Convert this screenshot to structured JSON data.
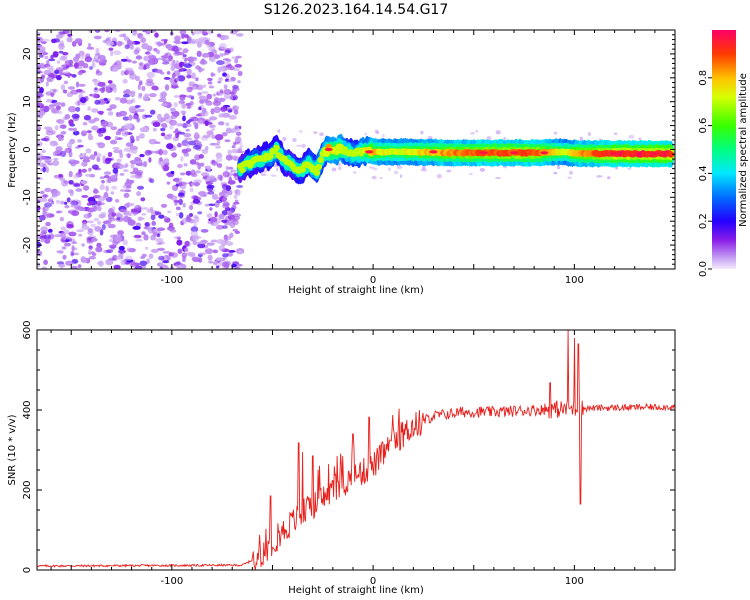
{
  "title": "S126.2023.164.14.54.G17",
  "chart_data": [
    {
      "type": "heatmap",
      "xlabel": "Height of straight line (km)",
      "ylabel": "Frequency (Hz)",
      "xlim": [
        -167,
        150
      ],
      "ylim": [
        -25,
        25
      ],
      "x_ticks": [
        -100,
        0,
        100
      ],
      "y_ticks": [
        -20,
        -10,
        0,
        10,
        20
      ],
      "colorbar": {
        "label": "Normalized spectral amplitude",
        "range": [
          0,
          1
        ],
        "ticks": [
          0.0,
          0.2,
          0.4,
          0.6,
          0.8
        ]
      },
      "noise_region": {
        "x": [
          -167,
          -66
        ],
        "y": [
          -25,
          25
        ]
      },
      "ridge": [
        {
          "x": -66,
          "y": -4,
          "amp": 0.4
        },
        {
          "x": -60,
          "y": -2.5,
          "amp": 0.45
        },
        {
          "x": -52,
          "y": -1.5,
          "amp": 0.45
        },
        {
          "x": -48,
          "y": 0,
          "amp": 0.5
        },
        {
          "x": -45,
          "y": -2,
          "amp": 0.45
        },
        {
          "x": -40,
          "y": -3.5,
          "amp": 0.4
        },
        {
          "x": -36,
          "y": -4.5,
          "amp": 0.45
        },
        {
          "x": -32,
          "y": -3,
          "amp": 0.5
        },
        {
          "x": -28,
          "y": -4.5,
          "amp": 0.6
        },
        {
          "x": -25,
          "y": -1,
          "amp": 0.5
        },
        {
          "x": -22,
          "y": 0,
          "amp": 0.8
        },
        {
          "x": -15,
          "y": 0,
          "amp": 0.7
        },
        {
          "x": -10,
          "y": -1,
          "amp": 0.5
        },
        {
          "x": -5,
          "y": -0.5,
          "amp": 0.7
        },
        {
          "x": 0,
          "y": -0.5,
          "amp": 0.8
        },
        {
          "x": 10,
          "y": -0.5,
          "amp": 0.7
        },
        {
          "x": 20,
          "y": -0.5,
          "amp": 0.75
        },
        {
          "x": 40,
          "y": -0.7,
          "amp": 0.85
        },
        {
          "x": 60,
          "y": -0.7,
          "amp": 0.9
        },
        {
          "x": 80,
          "y": -0.7,
          "amp": 0.9
        },
        {
          "x": 95,
          "y": -0.5,
          "amp": 0.7
        },
        {
          "x": 100,
          "y": -0.8,
          "amp": 0.8
        },
        {
          "x": 120,
          "y": -0.9,
          "amp": 0.95
        },
        {
          "x": 148,
          "y": -0.9,
          "amp": 0.95
        }
      ]
    },
    {
      "type": "line",
      "xlabel": "Height of straight line (km)",
      "ylabel": "SNR (10 * v/v)",
      "xlim": [
        -167,
        150
      ],
      "ylim": [
        0,
        600
      ],
      "x_ticks": [
        -100,
        0,
        100
      ],
      "y_ticks": [
        0,
        200,
        400,
        600
      ],
      "color": "#e8201c",
      "envelope": [
        {
          "x": -167,
          "y": 10
        },
        {
          "x": -65,
          "y": 12
        },
        {
          "x": -58,
          "y": 30
        },
        {
          "x": -50,
          "y": 70
        },
        {
          "x": -40,
          "y": 120
        },
        {
          "x": -30,
          "y": 160
        },
        {
          "x": -20,
          "y": 200
        },
        {
          "x": -10,
          "y": 230
        },
        {
          "x": 0,
          "y": 260
        },
        {
          "x": 10,
          "y": 320
        },
        {
          "x": 20,
          "y": 360
        },
        {
          "x": 30,
          "y": 385
        },
        {
          "x": 45,
          "y": 395
        },
        {
          "x": 60,
          "y": 395
        },
        {
          "x": 80,
          "y": 400
        },
        {
          "x": 110,
          "y": 405
        },
        {
          "x": 150,
          "y": 408
        }
      ],
      "spikes": [
        {
          "x": -51,
          "y": 185
        },
        {
          "x": -37,
          "y": 318
        },
        {
          "x": -35,
          "y": 295
        },
        {
          "x": -30,
          "y": 285
        },
        {
          "x": -22,
          "y": 265
        },
        {
          "x": -15,
          "y": 285
        },
        {
          "x": -10,
          "y": 340
        },
        {
          "x": -2,
          "y": 382
        },
        {
          "x": 88,
          "y": 468
        },
        {
          "x": 97,
          "y": 600
        },
        {
          "x": 100,
          "y": 580
        },
        {
          "x": 102,
          "y": 565
        },
        {
          "x": 103,
          "y": 165
        }
      ]
    }
  ]
}
